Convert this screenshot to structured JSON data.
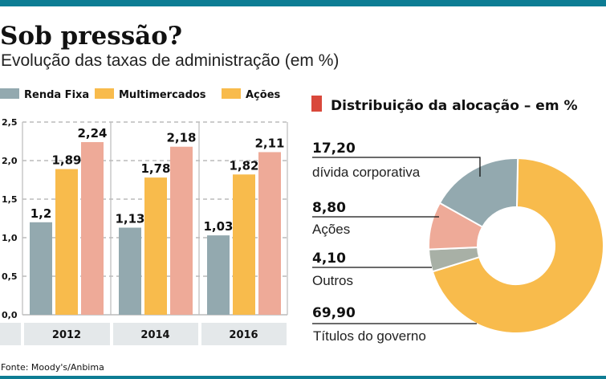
{
  "header": {
    "title": "Sob pressão?",
    "subtitle": "Evolução das taxas de administração (em %)"
  },
  "colors": {
    "accent": "#0e7d94",
    "renda_fixa": "#93a9af",
    "multimercados": "#f8bb4c",
    "acoes": "#eeaa98",
    "acoes_legend_swatch": "#f8bb4c",
    "outros": "#a8b0a6",
    "pie_title_marker": "#d9483b",
    "year_band": "#e4e8ea"
  },
  "chart_data": [
    {
      "type": "bar",
      "title": "",
      "categories": [
        "2012",
        "2014",
        "2016"
      ],
      "series": [
        {
          "name": "Renda Fixa",
          "values": [
            1.2,
            1.13,
            1.03
          ],
          "labels": [
            "1,2",
            "1,13",
            "1,03"
          ]
        },
        {
          "name": "Multimercados",
          "values": [
            1.89,
            1.78,
            1.82
          ],
          "labels": [
            "1,89",
            "1,78",
            "1,82"
          ]
        },
        {
          "name": "Ações",
          "values": [
            2.24,
            2.18,
            2.11
          ],
          "labels": [
            "2,24",
            "2,18",
            "2,11"
          ]
        }
      ],
      "ylim": [
        0,
        2.5
      ],
      "yticks": [
        "0,0",
        "0,5",
        "1,0",
        "1,5",
        "2,0",
        "2,5"
      ],
      "grid": true,
      "legend": "top"
    },
    {
      "type": "pie",
      "title": "Distribuição da alocação – em %",
      "donut": true,
      "slices": [
        {
          "label": "Títulos do governo",
          "value": 69.9,
          "value_label": "69,90"
        },
        {
          "label": "Outros",
          "value": 4.1,
          "value_label": "4,10"
        },
        {
          "label": "Ações",
          "value": 8.8,
          "value_label": "8,80"
        },
        {
          "label": "dívida corporativa",
          "value": 17.2,
          "value_label": "17,20"
        }
      ]
    }
  ],
  "footer": {
    "source": "Fonte: Moody's/Anbima"
  }
}
